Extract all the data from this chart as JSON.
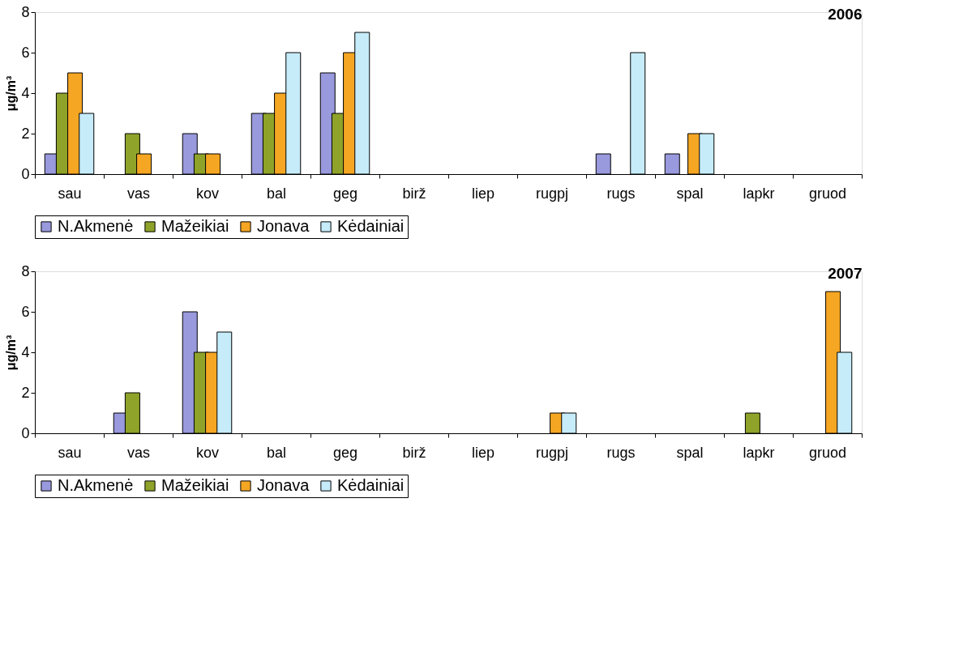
{
  "chart_data": [
    {
      "type": "bar",
      "title": "2006",
      "ylabel": "μg/m³",
      "categories": [
        "sau",
        "vas",
        "kov",
        "bal",
        "geg",
        "birž",
        "liep",
        "rugpj",
        "rugs",
        "spal",
        "lapkr",
        "gruod"
      ],
      "series": [
        {
          "name": "N.Akmenė",
          "color": "#9999dd",
          "values": [
            1,
            null,
            2,
            3,
            5,
            null,
            null,
            null,
            1,
            1,
            null,
            null
          ]
        },
        {
          "name": "Mažeikiai",
          "color": "#8fa32a",
          "values": [
            4,
            2,
            1,
            3,
            3,
            null,
            null,
            null,
            null,
            null,
            null,
            null
          ]
        },
        {
          "name": "Jonava",
          "color": "#f5a623",
          "values": [
            5,
            1,
            1,
            4,
            6,
            null,
            null,
            null,
            null,
            2,
            null,
            null
          ]
        },
        {
          "name": "Kėdainiai",
          "color": "#c6ecfa",
          "values": [
            3,
            null,
            null,
            6,
            7,
            null,
            null,
            null,
            6,
            2,
            null,
            null
          ]
        }
      ],
      "ylim": [
        0,
        8
      ],
      "yticks": [
        0,
        2,
        4,
        6,
        8
      ],
      "grid": false,
      "legend": "bottom"
    },
    {
      "type": "bar",
      "title": "2007",
      "ylabel": "μg/m³",
      "categories": [
        "sau",
        "vas",
        "kov",
        "bal",
        "geg",
        "birž",
        "liep",
        "rugpj",
        "rugs",
        "spal",
        "lapkr",
        "gruod"
      ],
      "series": [
        {
          "name": "N.Akmenė",
          "color": "#9999dd",
          "values": [
            null,
            1,
            6,
            null,
            null,
            null,
            null,
            null,
            null,
            null,
            null,
            null
          ]
        },
        {
          "name": "Mažeikiai",
          "color": "#8fa32a",
          "values": [
            null,
            2,
            4,
            null,
            null,
            null,
            null,
            null,
            null,
            null,
            1,
            null
          ]
        },
        {
          "name": "Jonava",
          "color": "#f5a623",
          "values": [
            null,
            null,
            4,
            null,
            null,
            null,
            null,
            1,
            null,
            null,
            null,
            7
          ]
        },
        {
          "name": "Kėdainiai",
          "color": "#c6ecfa",
          "values": [
            null,
            null,
            5,
            null,
            null,
            null,
            null,
            1,
            null,
            null,
            null,
            4
          ]
        }
      ],
      "ylim": [
        0,
        8
      ],
      "yticks": [
        0,
        2,
        4,
        6,
        8
      ],
      "grid": false,
      "legend": "bottom"
    }
  ]
}
